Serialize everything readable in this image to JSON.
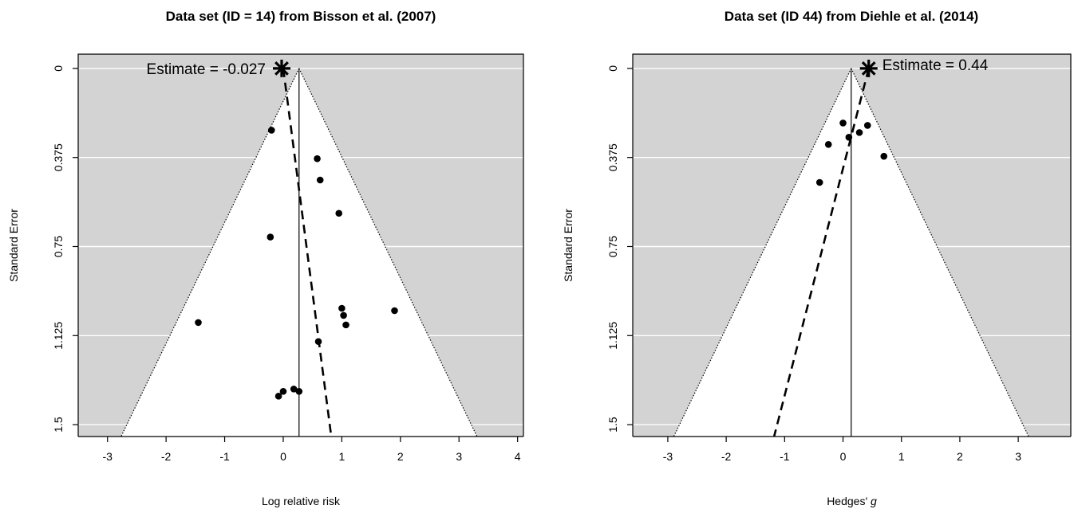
{
  "chart_data": [
    {
      "type": "scatter",
      "title": "Data set (ID = 14) from Bisson et al. (2007)",
      "xlabel": "Log relative risk",
      "xlabel_italic_suffix": "",
      "ylabel": "Standard Error",
      "xlim": [
        -3.5,
        4.1
      ],
      "ylim": [
        1.55,
        -0.06
      ],
      "y_reversed": true,
      "xticks": [
        -3,
        -2,
        -1,
        0,
        1,
        2,
        3,
        4
      ],
      "yticks": [
        0,
        0.375,
        0.75,
        1.125,
        1.5
      ],
      "ytick_labels": [
        "0",
        "0.375",
        "0.75",
        "1.125",
        "1.5"
      ],
      "grid": "horizontal white lines",
      "background_color": "#d3d3d3",
      "funnel_fill_color": "#ffffff",
      "summary_effect": 0.27,
      "funnel_se_max": 1.55,
      "regression_line": {
        "se0_x": 0.0,
        "se1_55_x": 0.82
      },
      "estimate": {
        "x": -0.027,
        "y": 0.0,
        "label": "Estimate =  -0.027"
      },
      "points": [
        {
          "x": -0.2,
          "y": 0.26
        },
        {
          "x": 0.58,
          "y": 0.38
        },
        {
          "x": 0.63,
          "y": 0.47
        },
        {
          "x": 0.95,
          "y": 0.61
        },
        {
          "x": -0.22,
          "y": 0.71
        },
        {
          "x": 1.0,
          "y": 1.01
        },
        {
          "x": 1.9,
          "y": 1.02
        },
        {
          "x": 1.03,
          "y": 1.04
        },
        {
          "x": 1.07,
          "y": 1.08
        },
        {
          "x": -1.45,
          "y": 1.07
        },
        {
          "x": 0.6,
          "y": 1.15
        },
        {
          "x": -0.08,
          "y": 1.38
        },
        {
          "x": 0.0,
          "y": 1.36
        },
        {
          "x": 0.18,
          "y": 1.35
        },
        {
          "x": 0.27,
          "y": 1.36
        }
      ]
    },
    {
      "type": "scatter",
      "title": "Data set (ID 44) from Diehle et al. (2014)",
      "xlabel": "Hedges' ",
      "xlabel_italic_suffix": "g",
      "ylabel": "Standard Error",
      "xlim": [
        -3.6,
        3.9
      ],
      "ylim": [
        1.55,
        -0.06
      ],
      "y_reversed": true,
      "xticks": [
        -3,
        -2,
        -1,
        0,
        1,
        2,
        3
      ],
      "yticks": [
        0,
        0.375,
        0.75,
        1.125,
        1.5
      ],
      "ytick_labels": [
        "0",
        "0.375",
        "0.75",
        "1.125",
        "1.5"
      ],
      "grid": "horizontal white lines",
      "background_color": "#d3d3d3",
      "funnel_fill_color": "#ffffff",
      "summary_effect": 0.14,
      "funnel_se_max": 1.55,
      "regression_line": {
        "se0_x": 0.44,
        "se1_55_x": -1.18
      },
      "estimate": {
        "x": 0.44,
        "y": 0.0,
        "label": "Estimate =  0.44"
      },
      "points": [
        {
          "x": 0.0,
          "y": 0.23
        },
        {
          "x": 0.42,
          "y": 0.24
        },
        {
          "x": 0.28,
          "y": 0.27
        },
        {
          "x": 0.1,
          "y": 0.29
        },
        {
          "x": -0.25,
          "y": 0.32
        },
        {
          "x": 0.7,
          "y": 0.37
        },
        {
          "x": -0.4,
          "y": 0.48
        }
      ]
    }
  ]
}
